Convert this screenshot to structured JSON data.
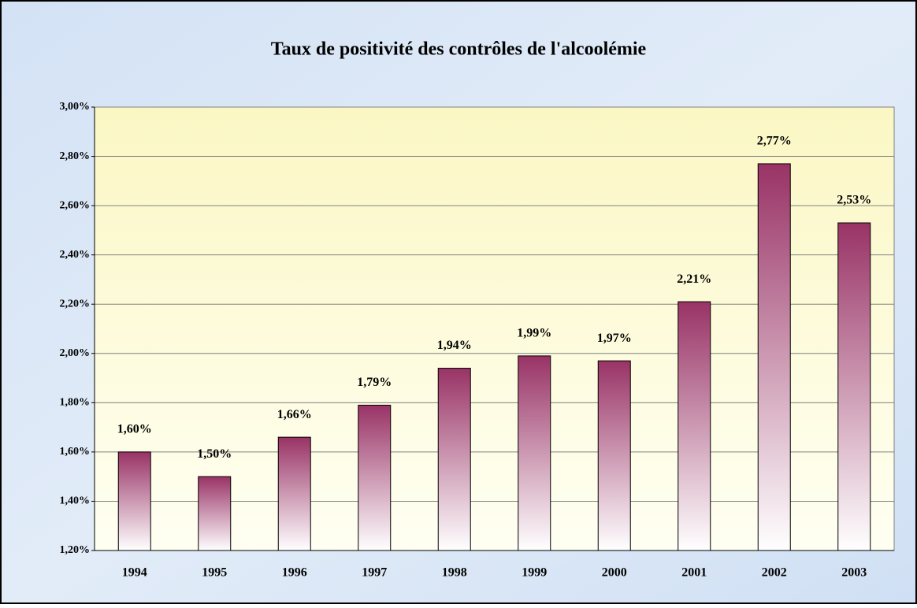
{
  "chart_data": {
    "type": "bar",
    "title": "Taux de positivité des contrôles de l'alcoolémie",
    "categories": [
      "1994",
      "1995",
      "1996",
      "1997",
      "1998",
      "1999",
      "2000",
      "2001",
      "2002",
      "2003"
    ],
    "values": [
      1.6,
      1.5,
      1.66,
      1.79,
      1.94,
      1.99,
      1.97,
      2.21,
      2.77,
      2.53
    ],
    "value_labels": [
      "1,60%",
      "1,50%",
      "1,66%",
      "1,79%",
      "1,94%",
      "1,99%",
      "1,97%",
      "2,21%",
      "2,77%",
      "2,53%"
    ],
    "color": "#993366",
    "ylim": [
      1.2,
      3.0
    ],
    "yticks": [
      {
        "value": 1.2,
        "label": "1,20%"
      },
      {
        "value": 1.4,
        "label": "1,40%"
      },
      {
        "value": 1.6,
        "label": "1,60%"
      },
      {
        "value": 1.8,
        "label": "1,80%"
      },
      {
        "value": 2.0,
        "label": "2,00%"
      },
      {
        "value": 2.2,
        "label": "2,20%"
      },
      {
        "value": 2.4,
        "label": "2,40%"
      },
      {
        "value": 2.6,
        "label": "2,60%"
      },
      {
        "value": 2.8,
        "label": "2,80%"
      },
      {
        "value": 3.0,
        "label": "3,00%"
      }
    ],
    "grid": true
  }
}
